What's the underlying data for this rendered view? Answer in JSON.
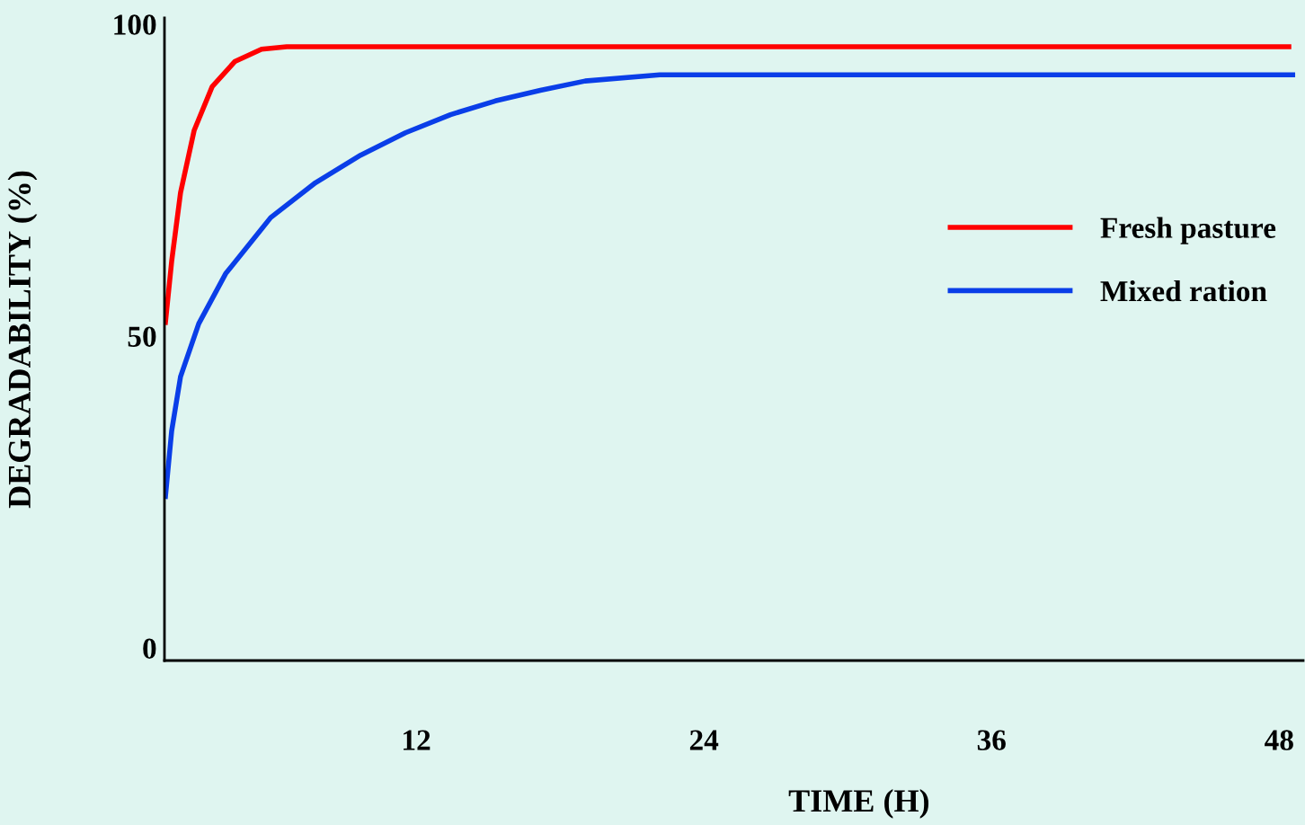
{
  "chart_data": {
    "type": "line",
    "xlabel": "TIME (H)",
    "ylabel": "DEGRADABILITY (%)",
    "xlim": [
      1.5,
      49
    ],
    "ylim": [
      -2,
      101
    ],
    "xticks": [
      12,
      24,
      36,
      48
    ],
    "yticks": [
      0,
      50,
      100
    ],
    "grid": false,
    "legend": "right",
    "marker": "none",
    "line_style": "solid",
    "series": [
      {
        "name": "Fresh pasture",
        "color": "#ff0000",
        "x": [
          1.54,
          1.8,
          2.17,
          2.74,
          3.49,
          4.43,
          5.55,
          6.6,
          48.4
        ],
        "values": [
          52.2,
          62,
          73,
          83,
          90,
          94,
          96,
          96.4,
          96.4
        ]
      },
      {
        "name": "Mixed ration",
        "color": "#0a3ee8",
        "x": [
          1.54,
          1.8,
          2.17,
          2.93,
          4.05,
          5.93,
          7.8,
          9.68,
          11.55,
          13.43,
          15.3,
          17.18,
          19.05,
          22.16,
          48.56
        ],
        "values": [
          24.3,
          34.8,
          43.5,
          52,
          60,
          69,
          74.6,
          79,
          82.6,
          85.5,
          87.7,
          89.4,
          90.9,
          91.9,
          91.9
        ]
      }
    ]
  }
}
